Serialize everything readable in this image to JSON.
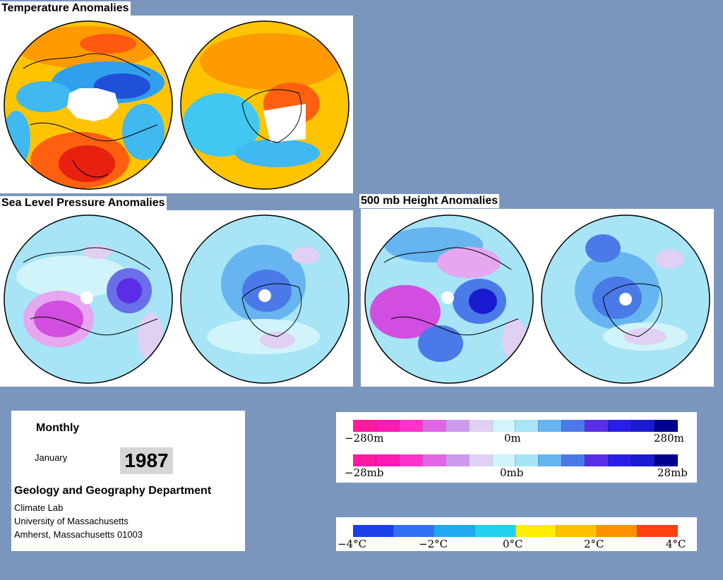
{
  "panels": {
    "temperature": {
      "title": "Temperature Anomalies"
    },
    "slp": {
      "title": "Sea Level Pressure Anomalies"
    },
    "height": {
      "title": "500 mb Height Anomalies"
    }
  },
  "info": {
    "period": "Monthly",
    "month": "January",
    "year": "1987",
    "department": "Geology and Geography Department",
    "lab": "Climate Lab",
    "university": "University of Massachusetts",
    "address": "Amherst, Massachusetts 01003"
  },
  "legends": {
    "height": {
      "left": "−280m",
      "mid": "0m",
      "right": "280m"
    },
    "pressure": {
      "left": "−28mb",
      "mid": "0mb",
      "right": "28mb"
    },
    "temperature": {
      "t1": "−4°C",
      "t2": "−2°C",
      "t3": "0°C",
      "t4": "2°C",
      "t5": "4°C"
    }
  },
  "colors": {
    "background": "#7b96bd",
    "anomaly_scale": [
      "#ff1aa0",
      "#ff1ab4",
      "#ff33cc",
      "#e066e6",
      "#cc99ee",
      "#e0d0f4",
      "#d0f4fa",
      "#a6e4f6",
      "#66b4f0",
      "#4a7ae8",
      "#5a2ee6",
      "#2a1ee6",
      "#1a1ad0",
      "#000090"
    ],
    "temperature_scale": [
      "#1a40e6",
      "#3070f0",
      "#20a8f0",
      "#20d0ee",
      "#ffee00",
      "#ffc000",
      "#ff9000",
      "#ff4010"
    ]
  }
}
